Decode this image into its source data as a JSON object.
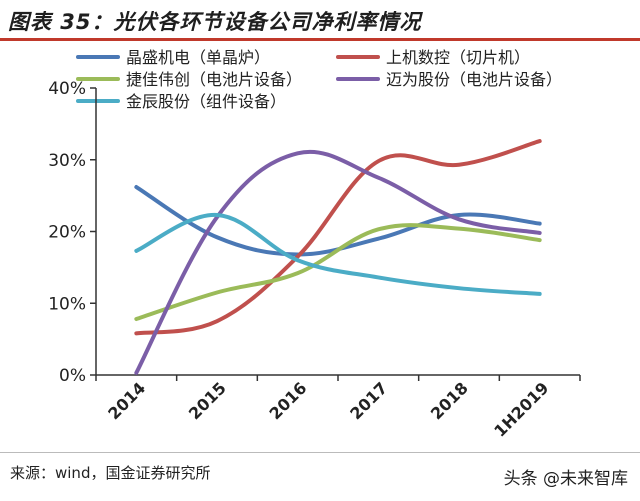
{
  "title": "图表 35：光伏各环节设备公司净利率情况",
  "source": "来源：wind，国金证券研究所",
  "watermark": "头条 @未来智库",
  "chart_data": {
    "type": "line",
    "categories": [
      "2014",
      "2015",
      "2016",
      "2017",
      "2018",
      "1H2019"
    ],
    "ylim": [
      0,
      40
    ],
    "yticks": [
      0,
      10,
      20,
      30,
      40
    ],
    "ytick_labels": [
      "0%",
      "10%",
      "20%",
      "30%",
      "40%"
    ],
    "series": [
      {
        "name": "晶盛机电（单晶炉）",
        "color": "#4a78b5",
        "values": [
          26.2,
          19.2,
          16.8,
          19.0,
          22.3,
          21.1
        ]
      },
      {
        "name": "上机数控（切片机）",
        "color": "#c0504d",
        "values": [
          5.8,
          7.5,
          16.5,
          29.8,
          29.3,
          32.6
        ]
      },
      {
        "name": "捷佳伟创（电池片设备）",
        "color": "#9bbb59",
        "values": [
          7.8,
          11.5,
          14.2,
          20.3,
          20.4,
          18.8
        ]
      },
      {
        "name": "迈为股份（电池片设备）",
        "color": "#7b5ea7",
        "values": [
          0.3,
          22.0,
          30.9,
          27.5,
          21.7,
          19.8
        ]
      },
      {
        "name": "金辰股份（组件设备）",
        "color": "#4bacc6",
        "values": [
          17.3,
          22.3,
          16.0,
          13.6,
          12.1,
          11.3
        ]
      }
    ]
  }
}
